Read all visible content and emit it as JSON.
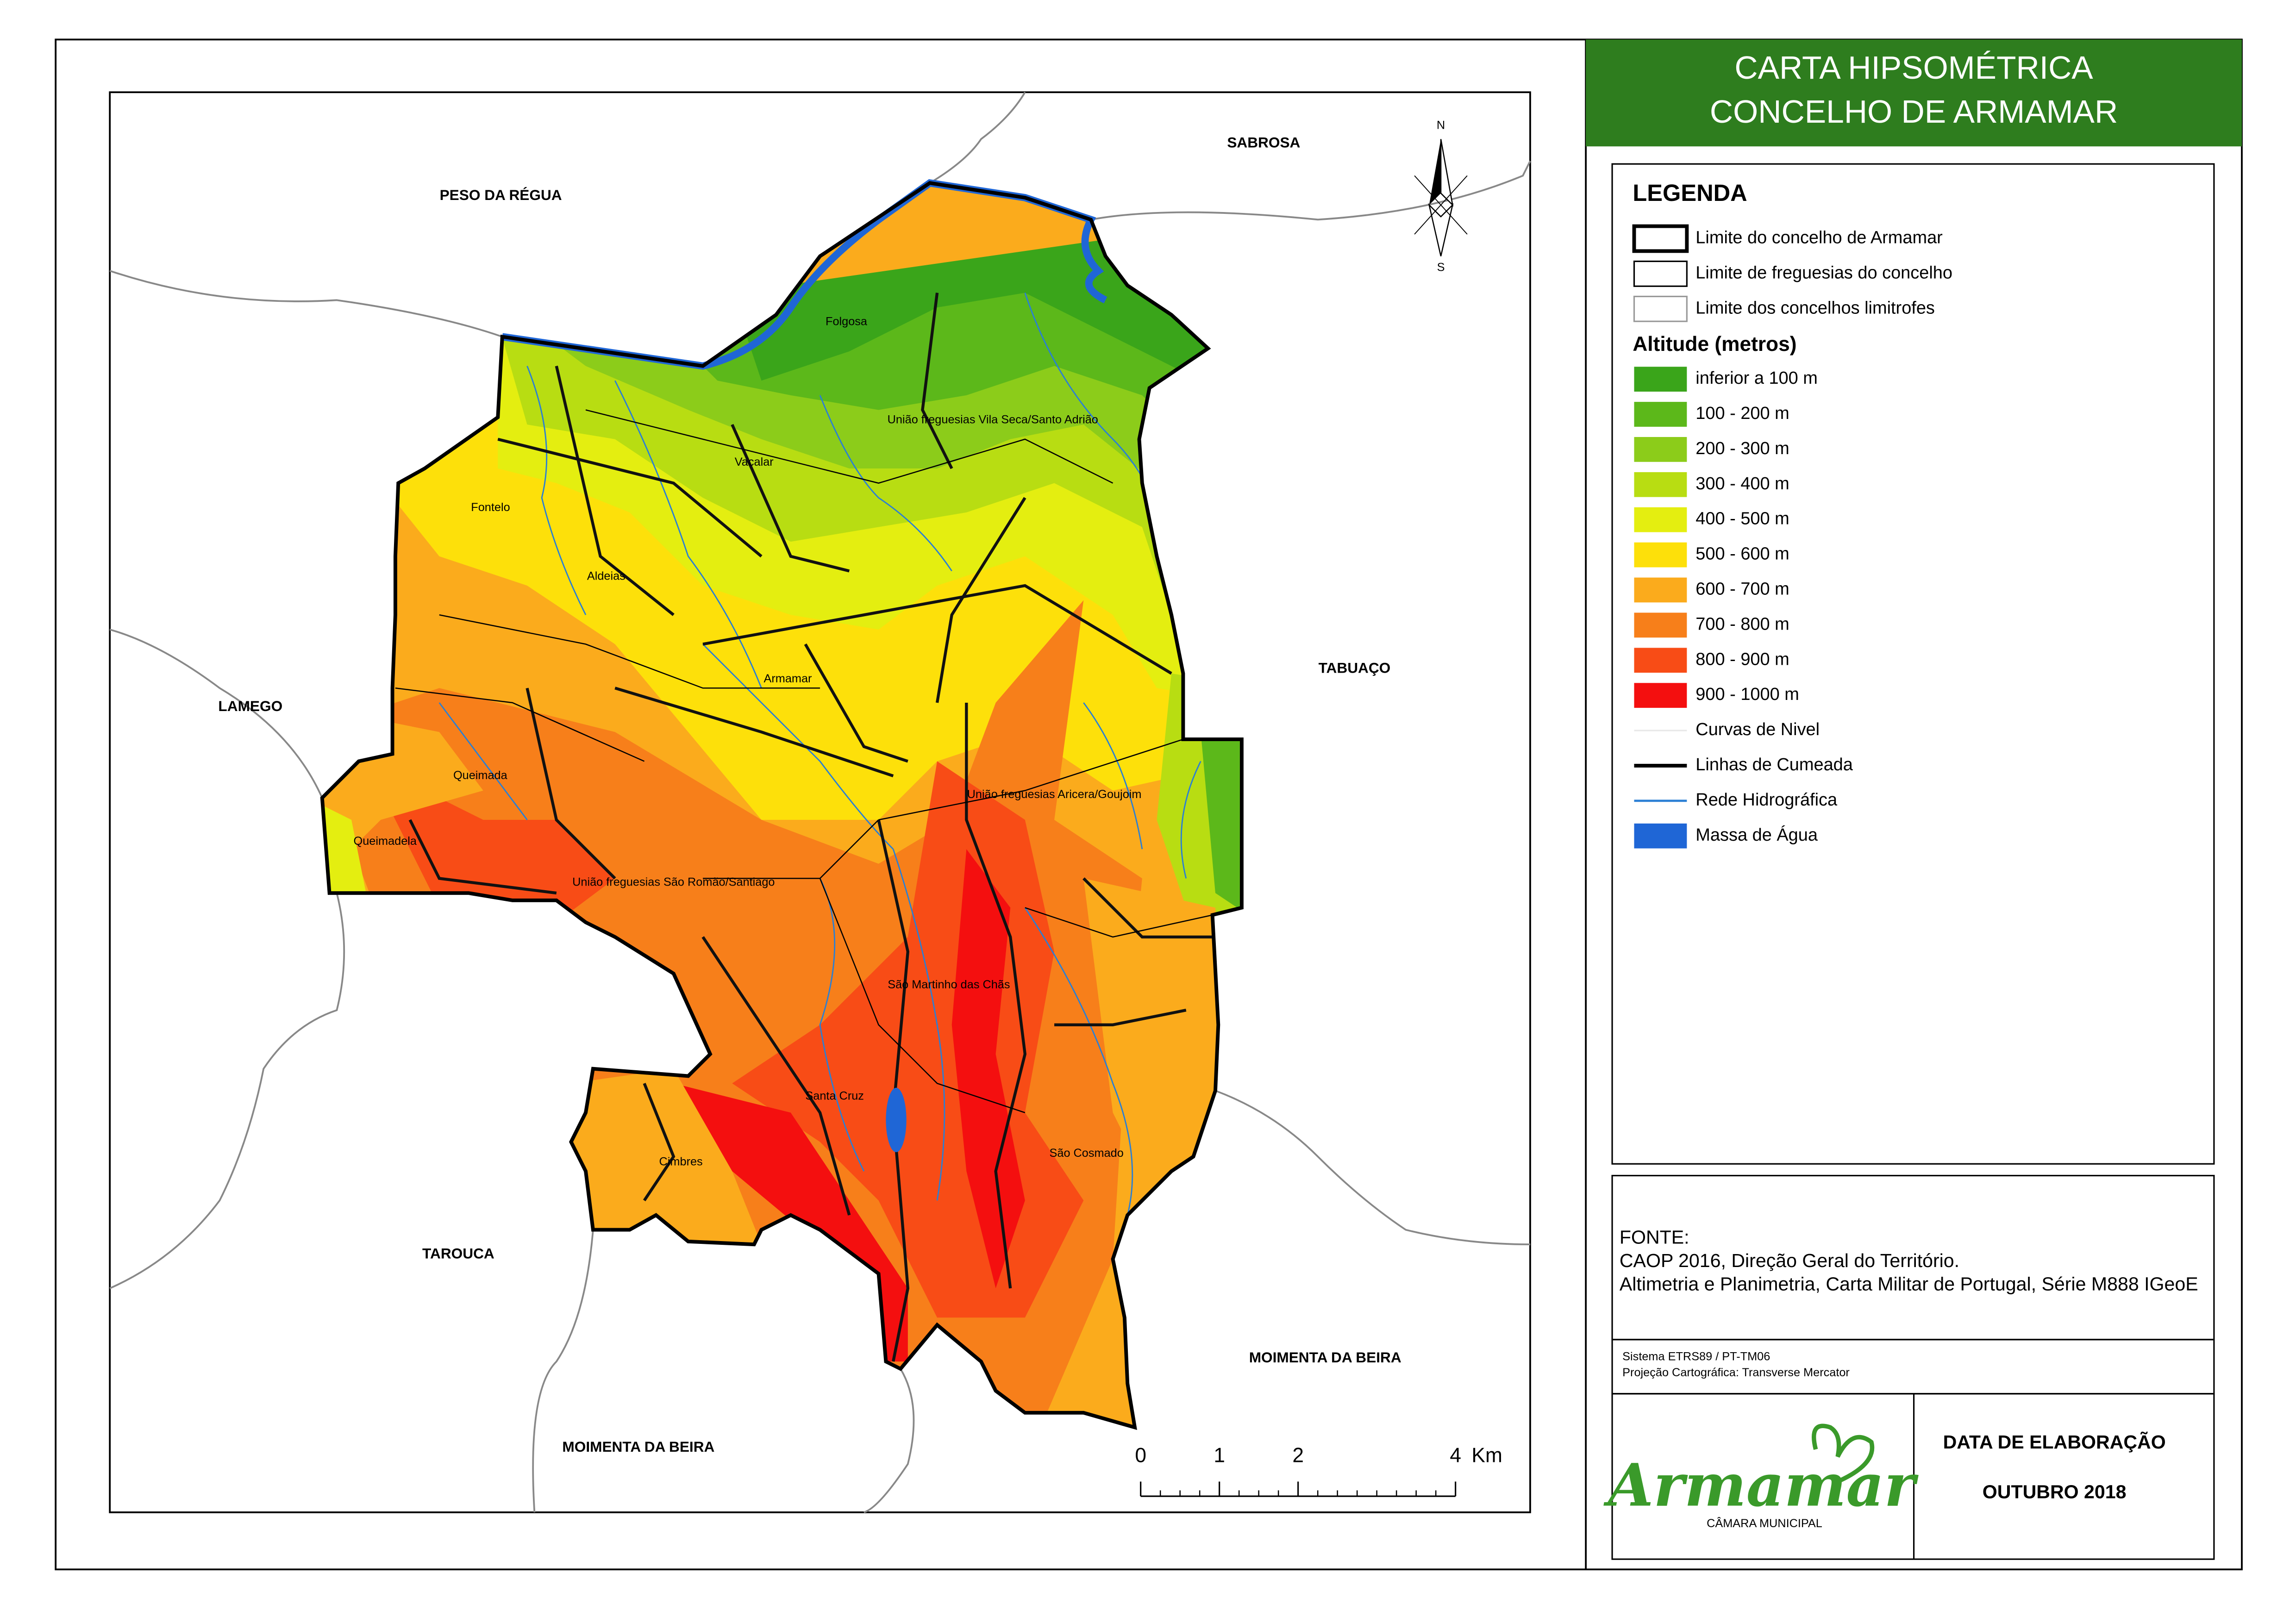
{
  "title": [
    "CARTA HIPSOMÉTRICA",
    "CONCELHO DE ARMAMAR"
  ],
  "legend": {
    "title": "LEGENDA",
    "boundaries": [
      "Limite do concelho de Armamar",
      "Limite de freguesias do concelho",
      "Limite dos concelhos limitrofes"
    ],
    "altitude_title": "Altitude (metros)",
    "altitude_classes": [
      {
        "label": "inferior a 100 m",
        "color": "#3aa51a"
      },
      {
        "label": "100 - 200 m",
        "color": "#5cb81a"
      },
      {
        "label": "200 - 300 m",
        "color": "#8ccc1a"
      },
      {
        "label": "300 - 400 m",
        "color": "#b8dd12"
      },
      {
        "label": "400 - 500 m",
        "color": "#e4ee10"
      },
      {
        "label": "500 - 600 m",
        "color": "#fde00a"
      },
      {
        "label": "600 - 700 m",
        "color": "#fbab1c"
      },
      {
        "label": "700 - 800 m",
        "color": "#f77f1a"
      },
      {
        "label": "800 - 900 m",
        "color": "#f84c16"
      },
      {
        "label": "900 - 1000 m",
        "color": "#f40f0f"
      }
    ],
    "lines": [
      "Curvas de Nivel",
      "Linhas de Cumeada",
      "Rede Hidrográfica",
      "Massa de Água"
    ]
  },
  "map": {
    "neighbors": [
      "PESO DA RÉGUA",
      "SABROSA",
      "TABUAÇO",
      "LAMEGO",
      "TAROUCA",
      "MOIMENTA DA BEIRA",
      "MOIMENTA DA BEIRA"
    ],
    "parishes": [
      "Folgosa",
      "União freguesias Vila Seca/Santo Adrião",
      "Vacalar",
      "Fontelo",
      "Aldeias",
      "Armamar",
      "Queimada",
      "Queimadela",
      "União freguesias São Romão/Santiago",
      "União freguesias Aricera/Goujoim",
      "São Martinho das Chãs",
      "Santa Cruz",
      "Cimbres",
      "São Cosmado"
    ],
    "north": "N",
    "south": "S",
    "scale": {
      "ticks": [
        0,
        1,
        2,
        4
      ],
      "unit": "Km"
    }
  },
  "source": {
    "heading": "FONTE:",
    "lines": [
      "CAOP 2016, Direção Geral do Território.",
      "Altimetria e Planimetria, Carta Militar de Portugal, Série M888 IGeoE"
    ]
  },
  "projection": [
    "Sistema ETRS89 / PT-TM06",
    "Projeção Cartográfica: Transverse Mercator"
  ],
  "logo": {
    "name": "Armamar",
    "subtitle": "CÂMARA MUNICIPAL"
  },
  "date": {
    "heading": "DATA DE ELABORAÇÃO",
    "value": "OUTUBRO 2018"
  }
}
